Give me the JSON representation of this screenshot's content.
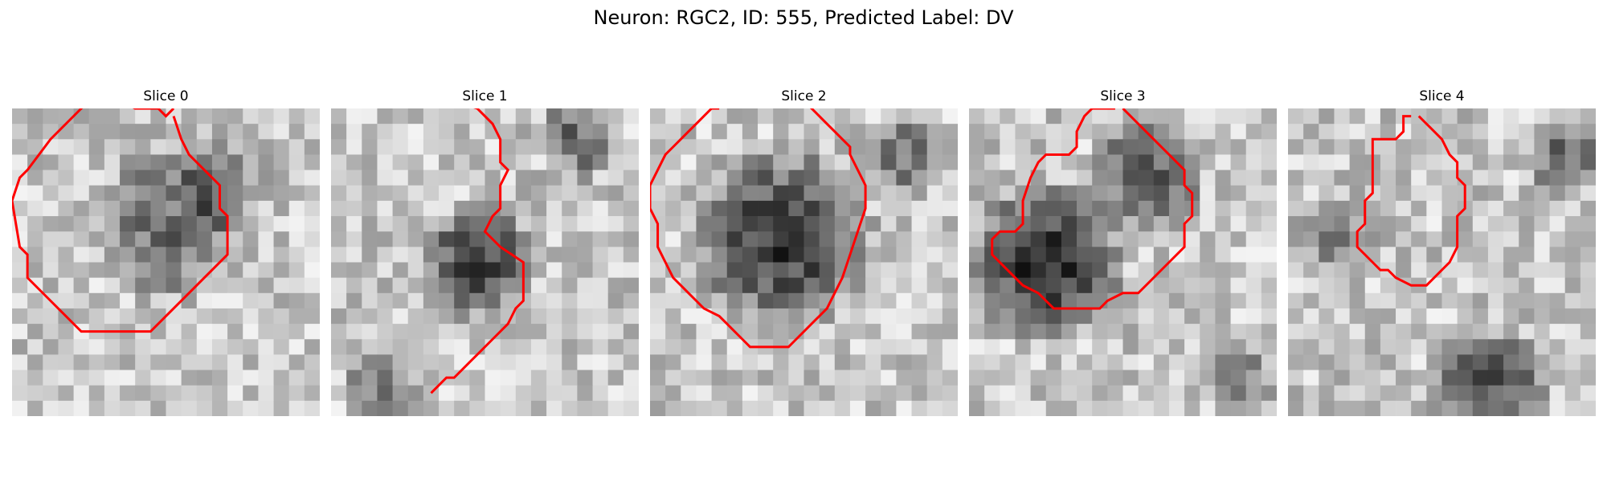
{
  "figure": {
    "title": "Neuron: RGC2, ID: 555, Predicted Label: DV"
  },
  "colors": {
    "contour": "#ff0000",
    "background": "#ffffff"
  },
  "colormap": "gray",
  "panels": [
    {
      "title": "Slice 0",
      "contour": [
        [
          10.5,
          0.0
        ],
        [
          10.0,
          0.5
        ],
        [
          9.5,
          0.0
        ],
        [
          8.0,
          0.0
        ],
        [
          7.0,
          -0.5
        ],
        [
          5.0,
          -0.5
        ],
        [
          4.5,
          0.0
        ],
        [
          2.5,
          2.0
        ],
        [
          1.0,
          4.0
        ],
        [
          0.5,
          4.5
        ],
        [
          0.0,
          6.0
        ],
        [
          0.5,
          9.0
        ],
        [
          1.0,
          9.5
        ],
        [
          1.0,
          11.0
        ],
        [
          2.5,
          12.5
        ],
        [
          4.5,
          14.5
        ],
        [
          9.0,
          14.5
        ],
        [
          11.5,
          12.0
        ],
        [
          13.0,
          10.5
        ],
        [
          14.0,
          9.5
        ],
        [
          14.0,
          7.0
        ],
        [
          13.5,
          6.5
        ],
        [
          13.5,
          5.0
        ],
        [
          12.5,
          4.0
        ],
        [
          11.5,
          3.0
        ],
        [
          11.0,
          2.0
        ],
        [
          10.5,
          0.5
        ]
      ]
    },
    {
      "title": "Slice 1",
      "contour": [
        [
          6.5,
          -0.5
        ],
        [
          8.0,
          -0.5
        ],
        [
          9.5,
          0.0
        ],
        [
          10.5,
          1.0
        ],
        [
          11.0,
          2.0
        ],
        [
          11.0,
          3.5
        ],
        [
          11.5,
          4.0
        ],
        [
          11.0,
          5.0
        ],
        [
          11.0,
          6.5
        ],
        [
          10.5,
          7.0
        ],
        [
          10.0,
          8.0
        ],
        [
          11.0,
          9.0
        ],
        [
          12.5,
          10.0
        ],
        [
          12.5,
          12.5
        ],
        [
          12.0,
          13.0
        ],
        [
          11.5,
          14.0
        ],
        [
          10.5,
          15.0
        ],
        [
          9.5,
          16.0
        ],
        [
          9.0,
          16.5
        ],
        [
          8.5,
          17.0
        ],
        [
          8.0,
          17.5
        ],
        [
          7.5,
          17.5
        ],
        [
          7.0,
          18.0
        ],
        [
          6.5,
          18.5
        ]
      ]
    },
    {
      "title": "Slice 2",
      "contour": [
        [
          4.5,
          0.0
        ],
        [
          4.0,
          0.0
        ],
        [
          3.5,
          0.5
        ],
        [
          3.0,
          1.0
        ],
        [
          2.5,
          1.5
        ],
        [
          2.0,
          2.0
        ],
        [
          1.5,
          2.5
        ],
        [
          1.0,
          3.0
        ],
        [
          0.5,
          4.0
        ],
        [
          0.0,
          5.0
        ],
        [
          0.0,
          6.5
        ],
        [
          0.5,
          7.5
        ],
        [
          0.5,
          9.0
        ],
        [
          1.0,
          10.0
        ],
        [
          1.5,
          11.0
        ],
        [
          2.0,
          11.5
        ],
        [
          2.5,
          12.0
        ],
        [
          3.0,
          12.5
        ],
        [
          3.5,
          13.0
        ],
        [
          4.5,
          13.5
        ],
        [
          5.0,
          14.0
        ],
        [
          5.5,
          14.5
        ],
        [
          6.0,
          15.0
        ],
        [
          6.5,
          15.5
        ],
        [
          7.0,
          15.5
        ],
        [
          8.0,
          15.5
        ],
        [
          9.0,
          15.5
        ],
        [
          9.5,
          15.0
        ],
        [
          10.0,
          14.5
        ],
        [
          10.5,
          14.0
        ],
        [
          11.0,
          13.5
        ],
        [
          11.5,
          13.0
        ],
        [
          12.0,
          12.0
        ],
        [
          12.5,
          11.0
        ],
        [
          13.0,
          9.5
        ],
        [
          13.5,
          8.0
        ],
        [
          14.0,
          6.5
        ],
        [
          14.0,
          5.0
        ],
        [
          13.5,
          4.0
        ],
        [
          13.0,
          3.0
        ],
        [
          13.0,
          2.5
        ],
        [
          12.5,
          2.0
        ],
        [
          12.0,
          1.5
        ],
        [
          11.5,
          1.0
        ],
        [
          11.0,
          0.5
        ],
        [
          10.5,
          0.0
        ],
        [
          10.0,
          -0.5
        ],
        [
          9.5,
          -0.5
        ]
      ]
    },
    {
      "title": "Slice 3",
      "contour": [
        [
          9.5,
          0.0
        ],
        [
          8.0,
          0.0
        ],
        [
          7.5,
          0.5
        ],
        [
          7.0,
          1.5
        ],
        [
          7.0,
          2.5
        ],
        [
          6.5,
          3.0
        ],
        [
          5.0,
          3.0
        ],
        [
          4.5,
          3.5
        ],
        [
          4.0,
          4.5
        ],
        [
          3.5,
          6.0
        ],
        [
          3.5,
          7.5
        ],
        [
          3.0,
          8.0
        ],
        [
          2.0,
          8.0
        ],
        [
          1.5,
          8.5
        ],
        [
          1.5,
          9.5
        ],
        [
          2.5,
          10.5
        ],
        [
          3.5,
          11.5
        ],
        [
          4.5,
          12.0
        ],
        [
          5.0,
          12.5
        ],
        [
          5.5,
          13.0
        ],
        [
          8.5,
          13.0
        ],
        [
          9.0,
          12.5
        ],
        [
          10.0,
          12.0
        ],
        [
          11.0,
          12.0
        ],
        [
          12.0,
          11.0
        ],
        [
          13.0,
          10.0
        ],
        [
          14.0,
          9.0
        ],
        [
          14.0,
          7.5
        ],
        [
          14.5,
          7.0
        ],
        [
          14.5,
          5.5
        ],
        [
          14.0,
          5.0
        ],
        [
          14.0,
          4.0
        ],
        [
          13.0,
          3.0
        ],
        [
          12.0,
          2.0
        ],
        [
          11.0,
          1.0
        ],
        [
          10.5,
          0.5
        ],
        [
          10.0,
          0.0
        ]
      ]
    },
    {
      "title": "Slice 4",
      "contour": [
        [
          8.0,
          0.5
        ],
        [
          7.5,
          0.5
        ],
        [
          7.5,
          1.5
        ],
        [
          7.0,
          2.0
        ],
        [
          5.5,
          2.0
        ],
        [
          5.5,
          5.5
        ],
        [
          5.0,
          6.0
        ],
        [
          5.0,
          7.5
        ],
        [
          4.5,
          8.0
        ],
        [
          4.5,
          9.0
        ],
        [
          5.5,
          10.0
        ],
        [
          6.0,
          10.5
        ],
        [
          6.5,
          10.5
        ],
        [
          7.0,
          11.0
        ],
        [
          8.0,
          11.5
        ],
        [
          9.0,
          11.5
        ],
        [
          9.5,
          11.0
        ],
        [
          10.0,
          10.5
        ],
        [
          10.5,
          10.0
        ],
        [
          11.0,
          9.0
        ],
        [
          11.0,
          7.0
        ],
        [
          11.5,
          6.5
        ],
        [
          11.5,
          5.0
        ],
        [
          11.0,
          4.5
        ],
        [
          11.0,
          3.5
        ],
        [
          10.5,
          3.0
        ],
        [
          10.0,
          2.0
        ],
        [
          9.5,
          1.5
        ],
        [
          9.0,
          1.0
        ],
        [
          8.5,
          0.5
        ]
      ]
    }
  ]
}
